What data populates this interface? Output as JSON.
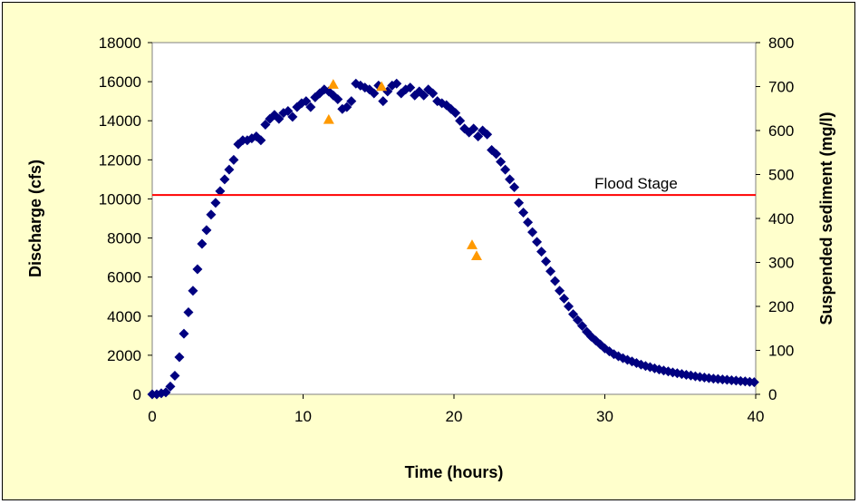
{
  "chart_data": {
    "type": "scatter",
    "xlabel": "Time (hours)",
    "ylabel": "Discharge (cfs)",
    "y2label": "Suspended sediment (mg/l)",
    "xlim": [
      0,
      40
    ],
    "ylim": [
      0,
      18000
    ],
    "y2lim": [
      0,
      800
    ],
    "xticks": [
      "0",
      "10",
      "20",
      "30",
      "40"
    ],
    "yticks": [
      "0",
      "2000",
      "4000",
      "6000",
      "8000",
      "10000",
      "12000",
      "14000",
      "16000",
      "18000"
    ],
    "y2ticks": [
      "0",
      "100",
      "200",
      "300",
      "400",
      "500",
      "600",
      "700",
      "800"
    ],
    "grid": false,
    "flood_stage": {
      "label": "Flood Stage",
      "value": 10200,
      "color": "#ff0000"
    },
    "series": [
      {
        "axis": "left",
        "marker": "diamond",
        "color": "#000080",
        "points": [
          [
            0,
            0
          ],
          [
            0.3,
            0
          ],
          [
            0.6,
            50
          ],
          [
            0.9,
            100
          ],
          [
            1.2,
            400
          ],
          [
            1.5,
            950
          ],
          [
            1.8,
            1900
          ],
          [
            2.1,
            3100
          ],
          [
            2.4,
            4200
          ],
          [
            2.7,
            5300
          ],
          [
            3.0,
            6400
          ],
          [
            3.3,
            7700
          ],
          [
            3.6,
            8400
          ],
          [
            3.9,
            9200
          ],
          [
            4.2,
            9800
          ],
          [
            4.5,
            10400
          ],
          [
            4.8,
            11000
          ],
          [
            5.1,
            11500
          ],
          [
            5.4,
            12000
          ],
          [
            5.7,
            12800
          ],
          [
            6.0,
            13000
          ],
          [
            6.3,
            13000
          ],
          [
            6.6,
            13100
          ],
          [
            6.9,
            13200
          ],
          [
            7.2,
            13000
          ],
          [
            7.5,
            13800
          ],
          [
            7.8,
            14100
          ],
          [
            8.1,
            14300
          ],
          [
            8.4,
            14100
          ],
          [
            8.7,
            14400
          ],
          [
            9.0,
            14500
          ],
          [
            9.3,
            14200
          ],
          [
            9.6,
            14700
          ],
          [
            9.9,
            14900
          ],
          [
            10.2,
            15000
          ],
          [
            10.5,
            14700
          ],
          [
            10.8,
            15200
          ],
          [
            11.1,
            15400
          ],
          [
            11.4,
            15600
          ],
          [
            11.7,
            15500
          ],
          [
            12.0,
            15300
          ],
          [
            12.3,
            15100
          ],
          [
            12.6,
            14600
          ],
          [
            12.9,
            14700
          ],
          [
            13.2,
            15000
          ],
          [
            13.5,
            15900
          ],
          [
            13.8,
            15800
          ],
          [
            14.1,
            15700
          ],
          [
            14.4,
            15600
          ],
          [
            14.7,
            15400
          ],
          [
            15.0,
            15800
          ],
          [
            15.3,
            15000
          ],
          [
            15.6,
            15500
          ],
          [
            15.9,
            15800
          ],
          [
            16.2,
            15900
          ],
          [
            16.5,
            15400
          ],
          [
            16.8,
            15600
          ],
          [
            17.1,
            15700
          ],
          [
            17.4,
            15300
          ],
          [
            17.7,
            15500
          ],
          [
            18.0,
            15300
          ],
          [
            18.3,
            15600
          ],
          [
            18.6,
            15400
          ],
          [
            18.9,
            15000
          ],
          [
            19.2,
            14900
          ],
          [
            19.5,
            14800
          ],
          [
            19.8,
            14600
          ],
          [
            20.1,
            14400
          ],
          [
            20.4,
            14000
          ],
          [
            20.7,
            13600
          ],
          [
            21.0,
            13400
          ],
          [
            21.3,
            13600
          ],
          [
            21.6,
            13200
          ],
          [
            21.9,
            13500
          ],
          [
            22.2,
            13300
          ],
          [
            22.5,
            12500
          ],
          [
            22.8,
            12300
          ],
          [
            23.1,
            11900
          ],
          [
            23.4,
            11500
          ],
          [
            23.7,
            11000
          ],
          [
            24.0,
            10600
          ],
          [
            24.3,
            9800
          ],
          [
            24.6,
            9300
          ],
          [
            24.9,
            8800
          ],
          [
            25.2,
            8300
          ],
          [
            25.5,
            7800
          ],
          [
            25.8,
            7300
          ],
          [
            26.1,
            6800
          ],
          [
            26.4,
            6300
          ],
          [
            26.7,
            5800
          ],
          [
            27.0,
            5300
          ],
          [
            27.3,
            4900
          ],
          [
            27.6,
            4500
          ],
          [
            27.9,
            4100
          ],
          [
            28.2,
            3800
          ],
          [
            28.5,
            3500
          ],
          [
            28.8,
            3200
          ],
          [
            29.1,
            2950
          ],
          [
            29.4,
            2750
          ],
          [
            29.7,
            2550
          ],
          [
            30.0,
            2350
          ],
          [
            30.3,
            2200
          ],
          [
            30.6,
            2050
          ],
          [
            30.9,
            1950
          ],
          [
            31.2,
            1850
          ],
          [
            31.5,
            1760
          ],
          [
            31.8,
            1680
          ],
          [
            32.1,
            1600
          ],
          [
            32.4,
            1520
          ],
          [
            32.7,
            1450
          ],
          [
            33.0,
            1390
          ],
          [
            33.3,
            1330
          ],
          [
            33.6,
            1270
          ],
          [
            33.9,
            1220
          ],
          [
            34.2,
            1170
          ],
          [
            34.5,
            1120
          ],
          [
            34.8,
            1080
          ],
          [
            35.1,
            1040
          ],
          [
            35.4,
            1000
          ],
          [
            35.7,
            960
          ],
          [
            36.0,
            920
          ],
          [
            36.3,
            890
          ],
          [
            36.6,
            860
          ],
          [
            36.9,
            830
          ],
          [
            37.2,
            800
          ],
          [
            37.5,
            780
          ],
          [
            37.8,
            760
          ],
          [
            38.1,
            740
          ],
          [
            38.4,
            720
          ],
          [
            38.7,
            700
          ],
          [
            39.0,
            680
          ],
          [
            39.3,
            660
          ],
          [
            39.6,
            640
          ],
          [
            39.9,
            620
          ]
        ]
      },
      {
        "axis": "right",
        "marker": "triangle",
        "color": "#ff9900",
        "points": [
          [
            12.0,
            705
          ],
          [
            11.7,
            625
          ],
          [
            15.2,
            700
          ],
          [
            21.2,
            340
          ],
          [
            21.5,
            315
          ]
        ]
      }
    ]
  }
}
